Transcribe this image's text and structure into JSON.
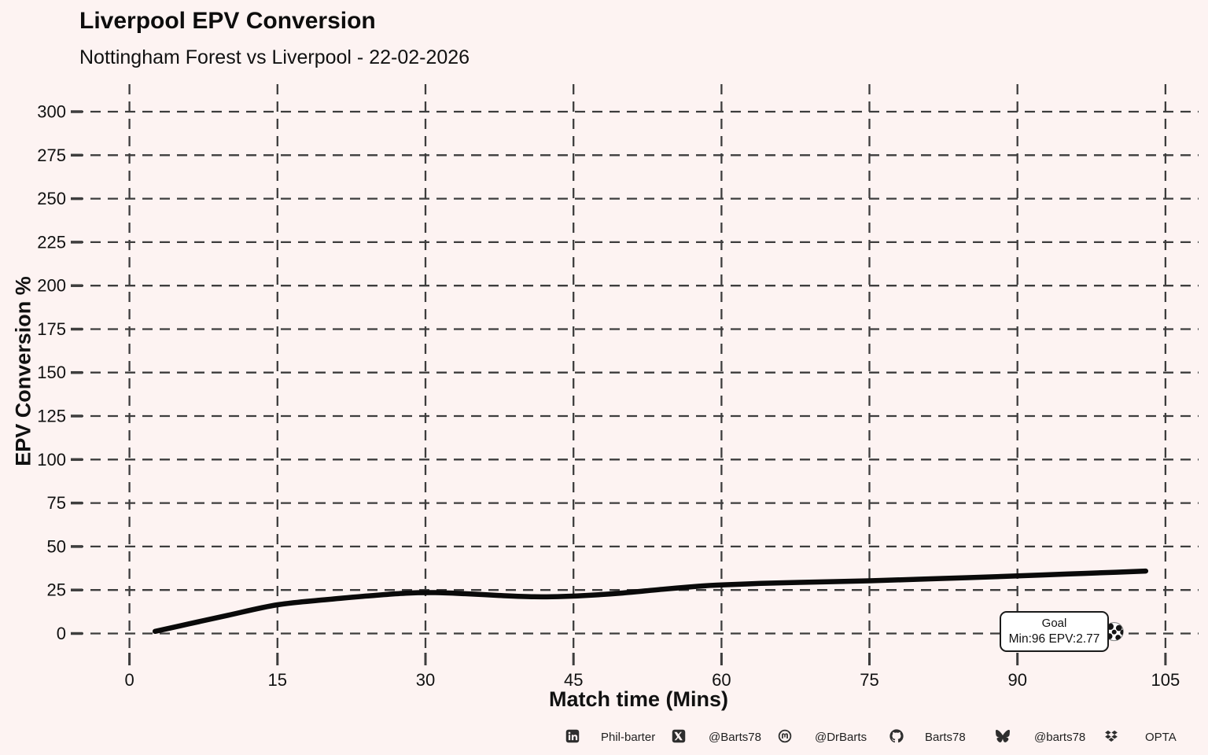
{
  "page": {
    "background": "#fdf3f2"
  },
  "chart_data": {
    "type": "line",
    "title": "Liverpool EPV Conversion",
    "subtitle": "Nottingham Forest vs Liverpool - 22-02-2026",
    "xlabel": "Match time (Mins)",
    "ylabel": "EPV Conversion %",
    "xticks": [
      0,
      15,
      30,
      45,
      60,
      75,
      90,
      105
    ],
    "yticks": [
      0,
      25,
      50,
      75,
      100,
      125,
      150,
      175,
      200,
      225,
      250,
      275,
      300
    ],
    "xlim": [
      0,
      105
    ],
    "ylim": [
      0,
      300
    ],
    "grid": {
      "style": "dashed",
      "color": "#3d3d3d",
      "both_axes": true
    },
    "line_color": "#0a0a0a",
    "series": [
      {
        "name": "Liverpool EPV Conversion %",
        "points": [
          [
            2.6,
            1.2
          ],
          [
            6,
            5.5
          ],
          [
            10,
            10.5
          ],
          [
            15,
            16.5
          ],
          [
            20,
            19.5
          ],
          [
            24,
            21.5
          ],
          [
            28,
            23.2
          ],
          [
            31,
            23.5
          ],
          [
            34,
            22.9
          ],
          [
            38,
            21.7
          ],
          [
            41,
            21.1
          ],
          [
            44,
            21.3
          ],
          [
            47,
            22.1
          ],
          [
            50,
            23.3
          ],
          [
            54,
            25.4
          ],
          [
            58,
            27.3
          ],
          [
            60,
            27.9
          ],
          [
            64,
            28.8
          ],
          [
            68,
            29.4
          ],
          [
            72,
            29.9
          ],
          [
            75,
            30.3
          ],
          [
            80,
            31.2
          ],
          [
            85,
            32.1
          ],
          [
            90,
            33.1
          ],
          [
            95,
            34.2
          ],
          [
            100,
            35.2
          ],
          [
            103,
            35.9
          ]
        ]
      }
    ],
    "annotation": {
      "title": "Goal",
      "detail": "Min:96 EPV:2.77",
      "minute": 96,
      "epv": 2.77,
      "marker": "soccer-ball",
      "marker_min": 99.8,
      "marker_value": 1.1
    }
  },
  "footer": {
    "items": [
      {
        "icon": "linkedin-icon",
        "label": "Phil-barter"
      },
      {
        "icon": "x-twitter-icon",
        "label": "@Barts78"
      },
      {
        "icon": "mastodon-icon",
        "label": "@DrBarts"
      },
      {
        "icon": "github-icon",
        "label": "Barts78"
      },
      {
        "icon": "bluesky-icon",
        "label": "@barts78"
      },
      {
        "icon": "dropbox-icon",
        "label": "OPTA"
      }
    ]
  }
}
